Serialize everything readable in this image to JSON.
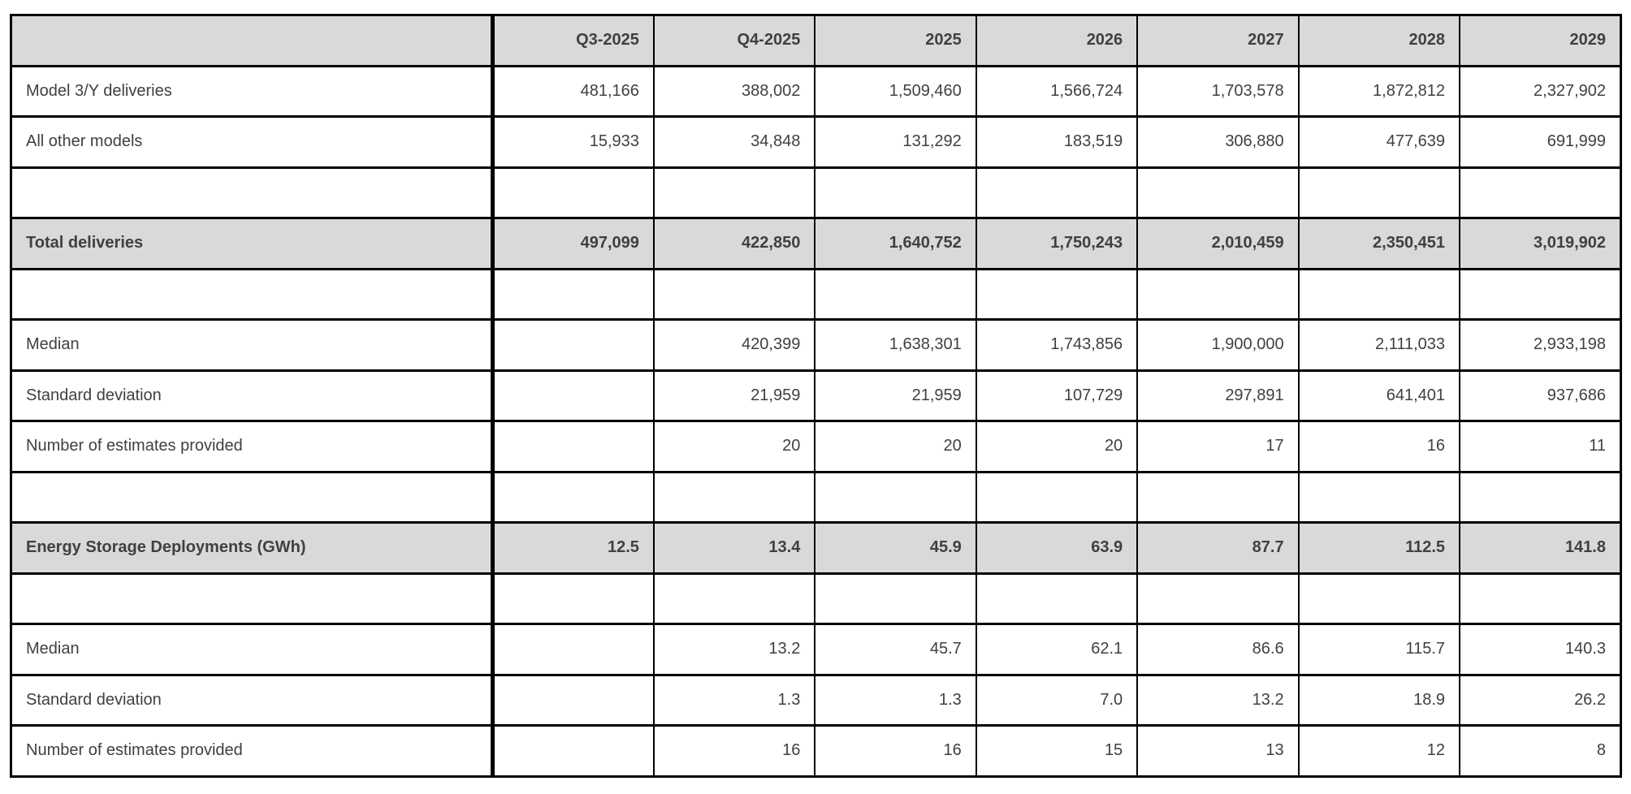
{
  "colors": {
    "header_bg": "#d9d9d9",
    "highlight_row_bg": "#d9d9d9",
    "text": "#404040",
    "border": "#000000",
    "background": "#ffffff"
  },
  "chart_data": {
    "type": "table",
    "title": "",
    "columns": [
      "",
      "Q3-2025",
      "Q4-2025",
      "2025",
      "2026",
      "2027",
      "2028",
      "2029"
    ],
    "rows": [
      {
        "label": "Model 3/Y deliveries",
        "style": "normal",
        "values": [
          "481,166",
          "388,002",
          "1,509,460",
          "1,566,724",
          "1,703,578",
          "1,872,812",
          "2,327,902"
        ]
      },
      {
        "label": "All other models",
        "style": "normal",
        "values": [
          "15,933",
          "34,848",
          "131,292",
          "183,519",
          "306,880",
          "477,639",
          "691,999"
        ]
      },
      {
        "label": "",
        "style": "spacer",
        "values": [
          "",
          "",
          "",
          "",
          "",
          "",
          ""
        ]
      },
      {
        "label": "Total deliveries",
        "style": "highlight",
        "values": [
          "497,099",
          "422,850",
          "1,640,752",
          "1,750,243",
          "2,010,459",
          "2,350,451",
          "3,019,902"
        ]
      },
      {
        "label": "",
        "style": "spacer",
        "values": [
          "",
          "",
          "",
          "",
          "",
          "",
          ""
        ]
      },
      {
        "label": "Median",
        "style": "normal",
        "values": [
          "",
          "420,399",
          "1,638,301",
          "1,743,856",
          "1,900,000",
          "2,111,033",
          "2,933,198"
        ]
      },
      {
        "label": "Standard deviation",
        "style": "normal",
        "values": [
          "",
          "21,959",
          "21,959",
          "107,729",
          "297,891",
          "641,401",
          "937,686"
        ]
      },
      {
        "label": "Number of estimates provided",
        "style": "normal",
        "values": [
          "",
          "20",
          "20",
          "20",
          "17",
          "16",
          "11"
        ]
      },
      {
        "label": "",
        "style": "spacer",
        "values": [
          "",
          "",
          "",
          "",
          "",
          "",
          ""
        ]
      },
      {
        "label": "Energy Storage Deployments (GWh)",
        "style": "highlight",
        "values": [
          "12.5",
          "13.4",
          "45.9",
          "63.9",
          "87.7",
          "112.5",
          "141.8"
        ]
      },
      {
        "label": "",
        "style": "spacer",
        "values": [
          "",
          "",
          "",
          "",
          "",
          "",
          ""
        ]
      },
      {
        "label": "Median",
        "style": "normal",
        "values": [
          "",
          "13.2",
          "45.7",
          "62.1",
          "86.6",
          "115.7",
          "140.3"
        ]
      },
      {
        "label": "Standard deviation",
        "style": "normal",
        "values": [
          "",
          "1.3",
          "1.3",
          "7.0",
          "13.2",
          "18.9",
          "26.2"
        ]
      },
      {
        "label": "Number of estimates provided",
        "style": "normal",
        "values": [
          "",
          "16",
          "16",
          "15",
          "13",
          "12",
          "8"
        ]
      }
    ]
  }
}
